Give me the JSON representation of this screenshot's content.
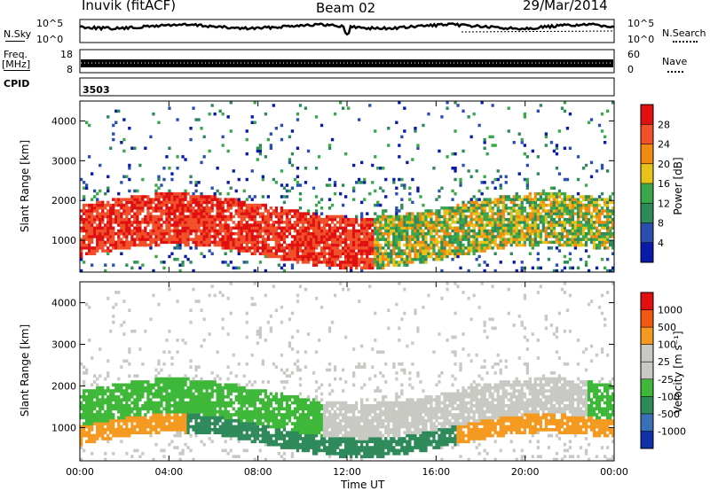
{
  "header": {
    "station": "Inuvik (fitACF)",
    "beam": "Beam 02",
    "date": "29/Mar/2014"
  },
  "top_panels": {
    "nsky_label": "N.Sky",
    "nsearch_label": "N.Search",
    "noise_ticks": [
      "10^5",
      "10^0"
    ],
    "freq_label_1": "Freq.",
    "freq_label_2": "[MHz]",
    "freq_ticks": [
      "18",
      "8"
    ],
    "nave_label": "Nave",
    "nave_ticks": [
      "60",
      "0"
    ],
    "cpid_label": "CPID",
    "cpid_value": "3503"
  },
  "colors": {
    "power_scale": [
      "#0a1aa8",
      "#2a4fb0",
      "#2f8a5a",
      "#3aa84a",
      "#e6c21a",
      "#f08a10",
      "#f0502a",
      "#e01010"
    ],
    "velocity_scale": [
      "#e01010",
      "#f05a10",
      "#f59a20",
      "#c9c9c4",
      "#c9c9c4",
      "#3fb83a",
      "#2f8a5a",
      "#3a70b8",
      "#1030a8"
    ]
  },
  "chart_data": [
    {
      "type": "heatmap",
      "title": "Power",
      "xlabel": "",
      "ylabel": "Slant Range [km]",
      "xlim": [
        "00:00",
        "24:00"
      ],
      "ylim": [
        200,
        4500
      ],
      "y_ticks": [
        1000,
        2000,
        3000,
        4000
      ],
      "y_tick_labels": [
        "1000",
        "2000",
        "3000",
        "4000"
      ],
      "colorbar_label": "Power [dB]",
      "colorbar_ticks": [
        "4",
        "8",
        "12",
        "16",
        "20",
        "24",
        "28"
      ],
      "colorbar_range": [
        0,
        32
      ],
      "legend": "right"
    },
    {
      "type": "heatmap",
      "title": "Velocity",
      "xlabel": "Time UT",
      "ylabel": "Slant Range [km]",
      "x_tick_labels": [
        "00:00",
        "04:00",
        "08:00",
        "12:00",
        "16:00",
        "20:00",
        "00:00"
      ],
      "ylim": [
        200,
        4500
      ],
      "y_ticks": [
        1000,
        2000,
        3000,
        4000
      ],
      "y_tick_labels": [
        "1000",
        "2000",
        "3000",
        "4000"
      ],
      "colorbar_label": "Velocity [m s⁻¹]",
      "colorbar_ticks": [
        "1000",
        "500",
        "100",
        "25",
        "-25",
        "-100",
        "-500",
        "-1000"
      ],
      "legend": "right"
    }
  ]
}
